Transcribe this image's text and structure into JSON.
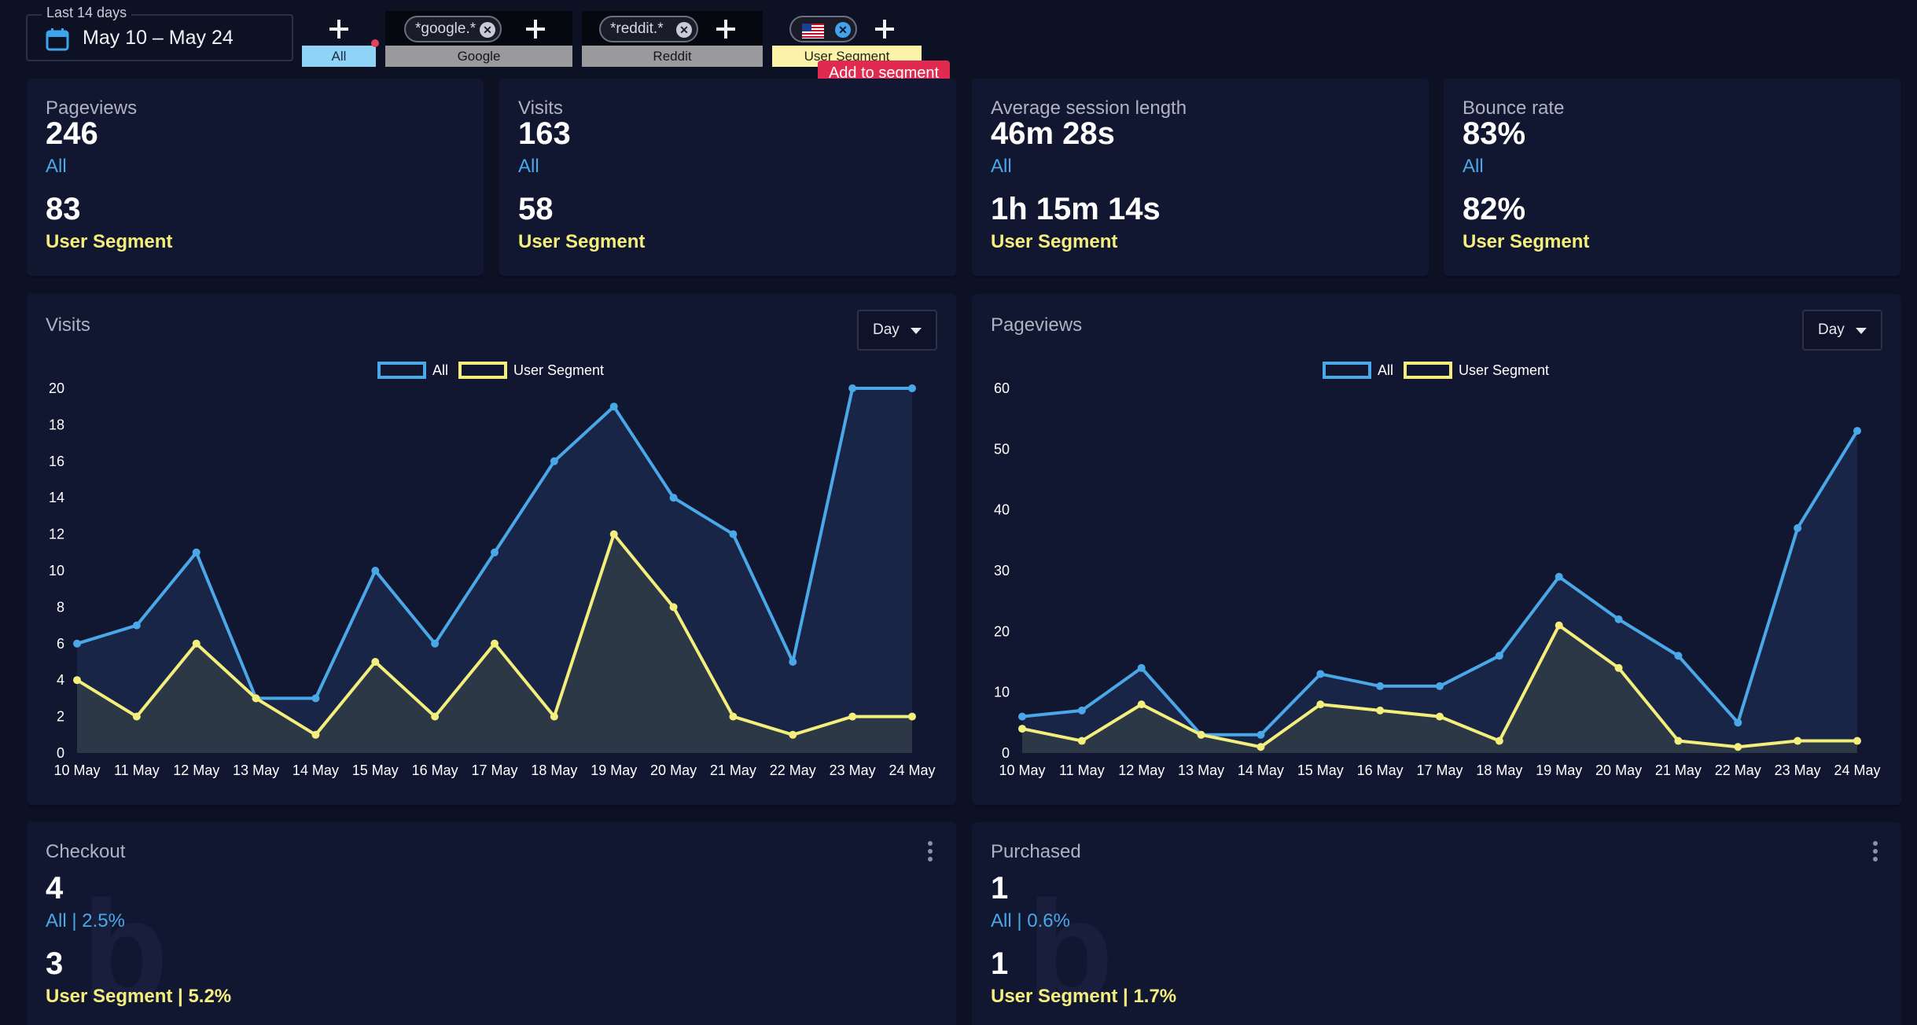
{
  "date_range": {
    "legend": "Last 14 days",
    "value": "May 10 – May 24"
  },
  "segments": [
    {
      "label": "All"
    },
    {
      "label": "Google",
      "chip": "*google.*"
    },
    {
      "label": "Reddit",
      "chip": "*reddit.*"
    },
    {
      "label": "User Segment",
      "chip_icon": "us-flag-icon"
    }
  ],
  "tooltip": "Add to segment",
  "series_labels": {
    "all": "All",
    "segment": "User Segment"
  },
  "kpis": [
    {
      "title": "Pageviews",
      "all": "246",
      "segment": "83"
    },
    {
      "title": "Visits",
      "all": "163",
      "segment": "58"
    },
    {
      "title": "Average session length",
      "all": "46m 28s",
      "segment": "1h 15m 14s"
    },
    {
      "title": "Bounce rate",
      "all": "83%",
      "segment": "82%"
    }
  ],
  "chart_controls": {
    "interval": "Day"
  },
  "colors": {
    "all": "#4aa8e8",
    "segment": "#f4ef7d",
    "background": "#0d1124",
    "card": "#121731",
    "tooltip": "#e02a4f"
  },
  "chart_data": [
    {
      "type": "area",
      "title": "Visits",
      "categories": [
        "10 May",
        "11 May",
        "12 May",
        "13 May",
        "14 May",
        "15 May",
        "16 May",
        "17 May",
        "18 May",
        "19 May",
        "20 May",
        "21 May",
        "22 May",
        "23 May",
        "24 May"
      ],
      "series": [
        {
          "name": "All",
          "values": [
            6,
            7,
            11,
            3,
            3,
            10,
            6,
            11,
            16,
            19,
            14,
            12,
            5,
            20,
            20
          ]
        },
        {
          "name": "User Segment",
          "values": [
            4,
            2,
            6,
            3,
            1,
            5,
            2,
            6,
            2,
            12,
            8,
            2,
            1,
            2,
            2
          ]
        }
      ],
      "ylim": [
        0,
        20
      ],
      "yticks": [
        0,
        2,
        4,
        6,
        8,
        10,
        12,
        14,
        16,
        18,
        20
      ],
      "legend": "top-center"
    },
    {
      "type": "area",
      "title": "Pageviews",
      "categories": [
        "10 May",
        "11 May",
        "12 May",
        "13 May",
        "14 May",
        "15 May",
        "16 May",
        "17 May",
        "18 May",
        "19 May",
        "20 May",
        "21 May",
        "22 May",
        "23 May",
        "24 May"
      ],
      "series": [
        {
          "name": "All",
          "values": [
            6,
            7,
            14,
            3,
            3,
            13,
            11,
            11,
            16,
            29,
            22,
            16,
            5,
            37,
            53
          ]
        },
        {
          "name": "User Segment",
          "values": [
            4,
            2,
            8,
            3,
            1,
            8,
            7,
            6,
            2,
            21,
            14,
            2,
            1,
            2,
            2
          ]
        }
      ],
      "ylim": [
        0,
        60
      ],
      "yticks": [
        0,
        10,
        20,
        30,
        40,
        50,
        60
      ],
      "legend": "top-center"
    }
  ],
  "conversions": [
    {
      "title": "Checkout",
      "all_value": "4",
      "all_label": "All | 2.5%",
      "segment_value": "3",
      "segment_label": "User Segment | 5.2%"
    },
    {
      "title": "Purchased",
      "all_value": "1",
      "all_label": "All | 0.6%",
      "segment_value": "1",
      "segment_label": "User Segment | 1.7%"
    }
  ]
}
